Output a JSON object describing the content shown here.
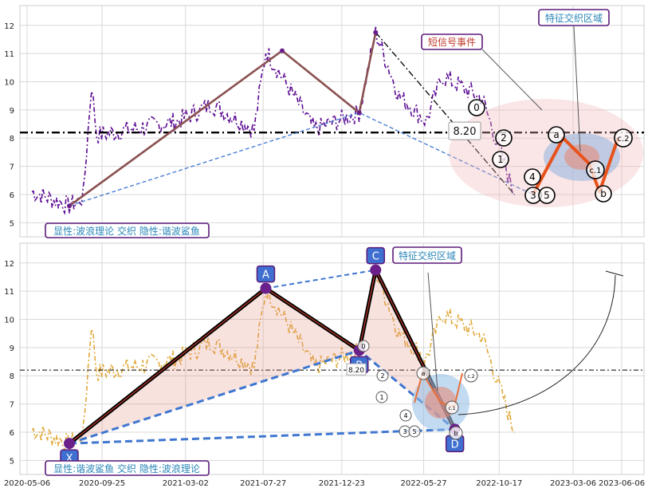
{
  "chart_data": [
    {
      "type": "line",
      "panel": "top",
      "ylim": [
        4.5,
        12.7
      ],
      "yticks": [
        5,
        6,
        7,
        8,
        9,
        10,
        11,
        12
      ],
      "grid": true,
      "colors": {
        "price": "#5b0a91",
        "wave": "#8a5050",
        "pattern": "#4a7fd4",
        "hline": "#000000",
        "marker": "#6a1f8a",
        "orange": "#e8521c",
        "caption": "#2a86b8",
        "callout": "#c0392b"
      },
      "hline": {
        "y": 8.2,
        "label": "8.20"
      },
      "wave_line": [
        {
          "x": "2020-07-25",
          "y": 5.6
        },
        {
          "x": "2021-09-01",
          "y": 11.1
        },
        {
          "x": "2022-01-25",
          "y": 8.9
        },
        {
          "x": "2022-02-25",
          "y": 11.75
        }
      ],
      "dashdot_line": [
        {
          "x": "2022-02-25",
          "y": 11.75
        },
        {
          "x": "2022-11-15",
          "y": 6.0
        }
      ],
      "pattern_line": [
        {
          "x": "2020-07-25",
          "y": 5.6
        },
        {
          "x": "2022-01-25",
          "y": 8.9
        },
        {
          "x": "2022-12-20",
          "y": 6.0
        }
      ],
      "zigzag": [
        {
          "x": "2022-12-20",
          "y": 6.0
        },
        {
          "x": "2023-02-15",
          "y": 8.0
        },
        {
          "x": "2023-04-05",
          "y": 7.1
        },
        {
          "x": "2023-04-25",
          "y": 6.1
        },
        {
          "x": "2023-05-30",
          "y": 8.0
        }
      ],
      "wave_labels": [
        "0",
        "2",
        "1",
        "4",
        "3",
        "5",
        "a",
        "b",
        "c.1",
        "c.2"
      ],
      "annotations": {
        "short_signal": "短信号事件",
        "feature_zone": "特征交织区域",
        "caption": "显性:波浪理论 交织 隐性:谐波鲨鱼"
      }
    },
    {
      "type": "line",
      "panel": "bottom",
      "ylim": [
        4.5,
        12.7
      ],
      "yticks": [
        5,
        6,
        7,
        8,
        9,
        10,
        11,
        12
      ],
      "x_ticks": [
        "2020-05-06",
        "2020-09-25",
        "2021-03-02",
        "2021-07-27",
        "2021-12-23",
        "2022-05-27",
        "2022-10-17",
        "2023-03-06",
        "2023-06-06"
      ],
      "grid": true,
      "colors": {
        "price": "#e0a83a",
        "xabcd": "#000000",
        "pattern": "#3f76d0",
        "hline": "#000000",
        "marker": "#6a1f8a",
        "box": "#3f6fd0",
        "caption": "#2a86b8"
      },
      "hline": {
        "y": 8.2,
        "label": "8.20"
      },
      "xabcd_points": [
        {
          "label": "X",
          "x": "2020-07-25",
          "y": 5.6
        },
        {
          "label": "A",
          "x": "2021-08-01",
          "y": 11.1
        },
        {
          "label": "B",
          "x": "2022-01-25",
          "y": 8.9
        },
        {
          "label": "C",
          "x": "2022-02-25",
          "y": 11.75
        },
        {
          "label": "D",
          "x": "2022-07-25",
          "y": 6.1
        }
      ],
      "wave_labels": [
        "0",
        "2",
        "1",
        "4",
        "3",
        "5",
        "a",
        "b",
        "c.1",
        "c.2"
      ],
      "annotations": {
        "feature_zone": "特征交织区域",
        "caption": "显性:谐波鲨鱼 交织 隐性:波浪理论"
      }
    }
  ]
}
